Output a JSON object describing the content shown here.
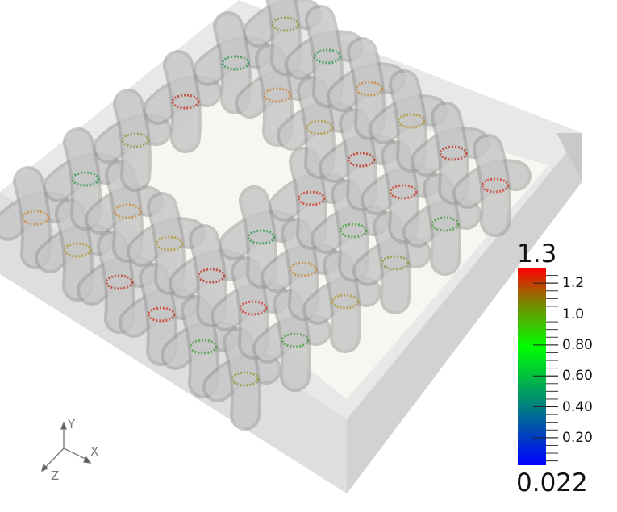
{
  "colorbar": {
    "min_label": "0.022",
    "max_label": "1.3",
    "min": 0.022,
    "max": 1.3,
    "tick_labels": [
      "1.2",
      "1.0",
      "0.80",
      "0.60",
      "0.40",
      "0.20"
    ],
    "tick_values": [
      1.2,
      1.0,
      0.8,
      0.6,
      0.4,
      0.2
    ],
    "colors": [
      "#0000ff",
      "#008080",
      "#00ff00",
      "#808000",
      "#ff0000"
    ]
  },
  "axes_triad": {
    "x": "X",
    "y": "Y",
    "z": "Z"
  },
  "colors": {
    "tube": "#b4b4b4",
    "box_face": "#e2e2e2",
    "floor": "#f7f6f0"
  }
}
